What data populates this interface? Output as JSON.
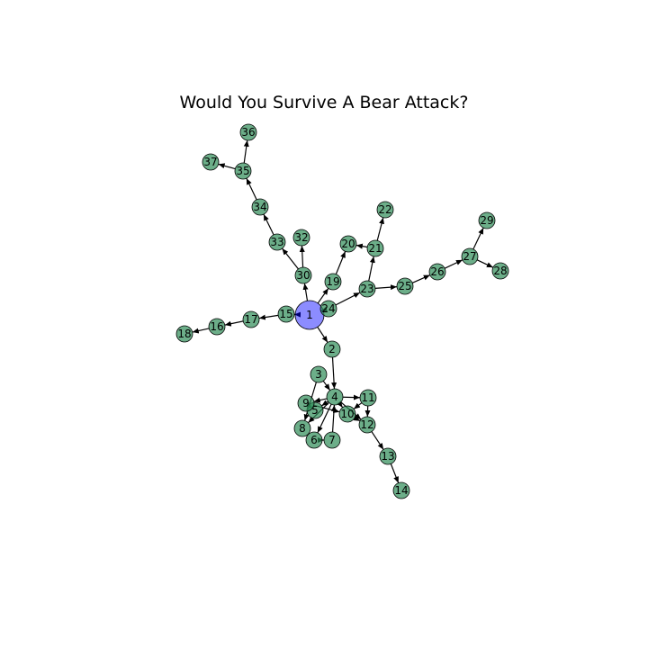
{
  "title": "Would You Survive A Bear Attack?",
  "colors": {
    "node_fill": "#2e8b57",
    "root_fill": "#0000ff",
    "edge": "#000000",
    "label": "#000000"
  },
  "root": "1",
  "nodes": [
    "1",
    "2",
    "3",
    "4",
    "5",
    "6",
    "7",
    "8",
    "9",
    "10",
    "11",
    "12",
    "13",
    "14",
    "15",
    "16",
    "17",
    "18",
    "19",
    "20",
    "21",
    "22",
    "23",
    "24",
    "25",
    "26",
    "27",
    "28",
    "29",
    "30",
    "32",
    "33",
    "34",
    "35",
    "36",
    "37"
  ],
  "edges": [
    [
      "1",
      "2"
    ],
    [
      "1",
      "15"
    ],
    [
      "1",
      "19"
    ],
    [
      "1",
      "24"
    ],
    [
      "1",
      "30"
    ],
    [
      "2",
      "4"
    ],
    [
      "3",
      "4"
    ],
    [
      "3",
      "8"
    ],
    [
      "4",
      "5"
    ],
    [
      "4",
      "6"
    ],
    [
      "4",
      "8"
    ],
    [
      "4",
      "9"
    ],
    [
      "4",
      "10"
    ],
    [
      "4",
      "11"
    ],
    [
      "4",
      "12"
    ],
    [
      "5",
      "9"
    ],
    [
      "6",
      "7"
    ],
    [
      "7",
      "4"
    ],
    [
      "9",
      "10"
    ],
    [
      "10",
      "12"
    ],
    [
      "11",
      "12"
    ],
    [
      "11",
      "10"
    ],
    [
      "12",
      "13"
    ],
    [
      "13",
      "14"
    ],
    [
      "15",
      "17"
    ],
    [
      "17",
      "16"
    ],
    [
      "16",
      "18"
    ],
    [
      "19",
      "20"
    ],
    [
      "21",
      "20"
    ],
    [
      "21",
      "22"
    ],
    [
      "23",
      "21"
    ],
    [
      "24",
      "23"
    ],
    [
      "23",
      "25"
    ],
    [
      "25",
      "26"
    ],
    [
      "26",
      "27"
    ],
    [
      "27",
      "29"
    ],
    [
      "27",
      "28"
    ],
    [
      "30",
      "32"
    ],
    [
      "30",
      "33"
    ],
    [
      "33",
      "34"
    ],
    [
      "34",
      "35"
    ],
    [
      "35",
      "37"
    ],
    [
      "35",
      "36"
    ]
  ]
}
